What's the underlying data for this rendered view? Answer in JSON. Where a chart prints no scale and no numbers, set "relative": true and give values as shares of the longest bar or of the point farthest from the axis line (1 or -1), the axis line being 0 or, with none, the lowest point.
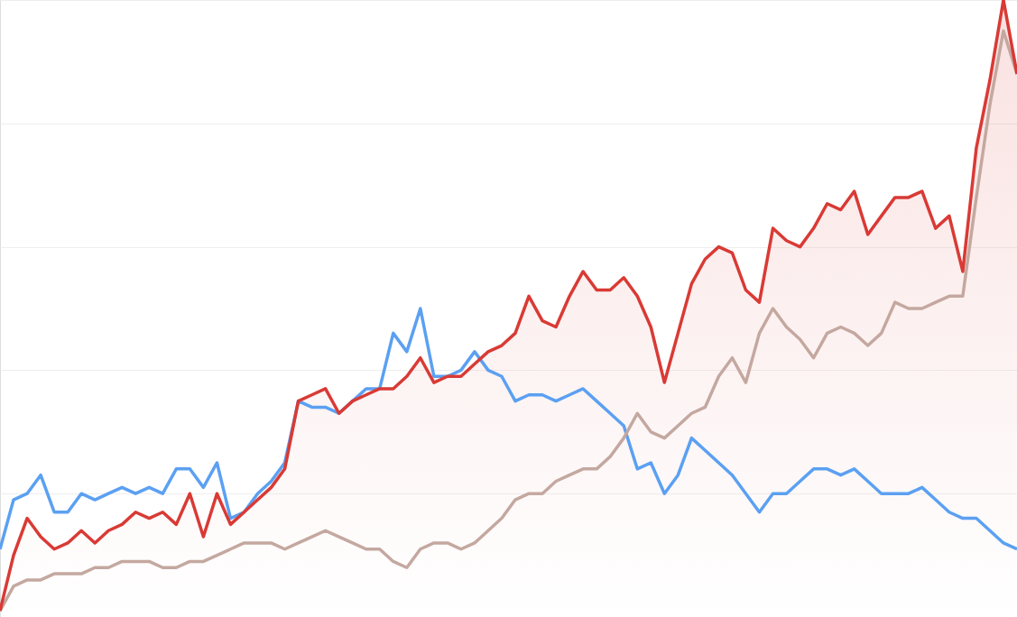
{
  "chart_data": {
    "type": "line",
    "relative": true,
    "grid": "y",
    "line_style": "solid",
    "marker": "none",
    "categories": [
      null,
      null,
      null,
      null,
      null,
      null,
      null,
      null,
      null,
      null,
      null,
      null,
      null,
      null,
      null,
      null,
      null,
      null,
      null,
      null,
      null,
      null,
      null,
      null,
      null,
      null,
      null,
      null,
      null,
      null,
      null,
      null,
      null,
      null,
      null,
      null,
      null,
      null,
      null,
      null,
      null,
      null,
      null,
      null,
      null,
      null,
      null,
      null,
      null,
      null,
      null,
      null,
      null,
      null,
      null,
      null,
      null,
      null,
      null,
      null,
      null,
      null,
      null,
      null,
      null,
      null,
      null,
      null,
      null,
      null,
      null,
      null,
      null,
      null,
      null,
      null
    ],
    "series": [
      {
        "color": "#5ba0f2",
        "values": [
          0.11,
          0.19,
          0.2,
          0.23,
          0.17,
          0.17,
          0.2,
          0.19,
          0.2,
          0.21,
          0.2,
          0.21,
          0.2,
          0.24,
          0.24,
          0.21,
          0.25,
          0.16,
          0.17,
          0.2,
          0.22,
          0.25,
          0.35,
          0.34,
          0.34,
          0.33,
          0.35,
          0.37,
          0.37,
          0.46,
          0.43,
          0.5,
          0.39,
          0.39,
          0.4,
          0.43,
          0.4,
          0.39,
          0.35,
          0.36,
          0.36,
          0.35,
          0.36,
          0.37,
          0.35,
          0.33,
          0.31,
          0.24,
          0.25,
          0.2,
          0.23,
          0.29,
          0.27,
          0.25,
          0.23,
          0.2,
          0.17,
          0.2,
          0.2,
          0.22,
          0.24,
          0.24,
          0.23,
          0.24,
          0.22,
          0.2,
          0.2,
          0.2,
          0.21,
          0.19,
          0.17,
          0.16,
          0.16,
          0.14,
          0.12,
          0.11
        ]
      },
      {
        "color": "#c4a8a0",
        "values": [
          0.01,
          0.05,
          0.06,
          0.06,
          0.07,
          0.07,
          0.07,
          0.08,
          0.08,
          0.09,
          0.09,
          0.09,
          0.08,
          0.08,
          0.09,
          0.09,
          0.1,
          0.11,
          0.12,
          0.12,
          0.12,
          0.11,
          0.12,
          0.13,
          0.14,
          0.13,
          0.12,
          0.11,
          0.11,
          0.09,
          0.08,
          0.11,
          0.12,
          0.12,
          0.11,
          0.12,
          0.14,
          0.16,
          0.19,
          0.2,
          0.2,
          0.22,
          0.23,
          0.24,
          0.24,
          0.26,
          0.29,
          0.33,
          0.3,
          0.29,
          0.31,
          0.33,
          0.34,
          0.39,
          0.42,
          0.38,
          0.46,
          0.5,
          0.47,
          0.45,
          0.42,
          0.46,
          0.47,
          0.46,
          0.44,
          0.46,
          0.51,
          0.5,
          0.5,
          0.51,
          0.52,
          0.52,
          0.68,
          0.83,
          0.95,
          0.88
        ]
      },
      {
        "type": "area",
        "color": "#d93a35",
        "values": [
          0.01,
          0.1,
          0.16,
          0.13,
          0.11,
          0.12,
          0.14,
          0.12,
          0.14,
          0.15,
          0.17,
          0.16,
          0.17,
          0.15,
          0.2,
          0.13,
          0.2,
          0.15,
          0.17,
          0.19,
          0.21,
          0.24,
          0.35,
          0.36,
          0.37,
          0.33,
          0.35,
          0.36,
          0.37,
          0.37,
          0.39,
          0.42,
          0.38,
          0.39,
          0.39,
          0.41,
          0.43,
          0.44,
          0.46,
          0.52,
          0.48,
          0.47,
          0.52,
          0.56,
          0.53,
          0.53,
          0.55,
          0.52,
          0.47,
          0.38,
          0.46,
          0.54,
          0.58,
          0.6,
          0.59,
          0.53,
          0.51,
          0.63,
          0.61,
          0.6,
          0.63,
          0.67,
          0.66,
          0.69,
          0.62,
          0.65,
          0.68,
          0.68,
          0.69,
          0.63,
          0.65,
          0.56,
          0.76,
          0.87,
          1.0,
          0.88
        ]
      }
    ]
  }
}
